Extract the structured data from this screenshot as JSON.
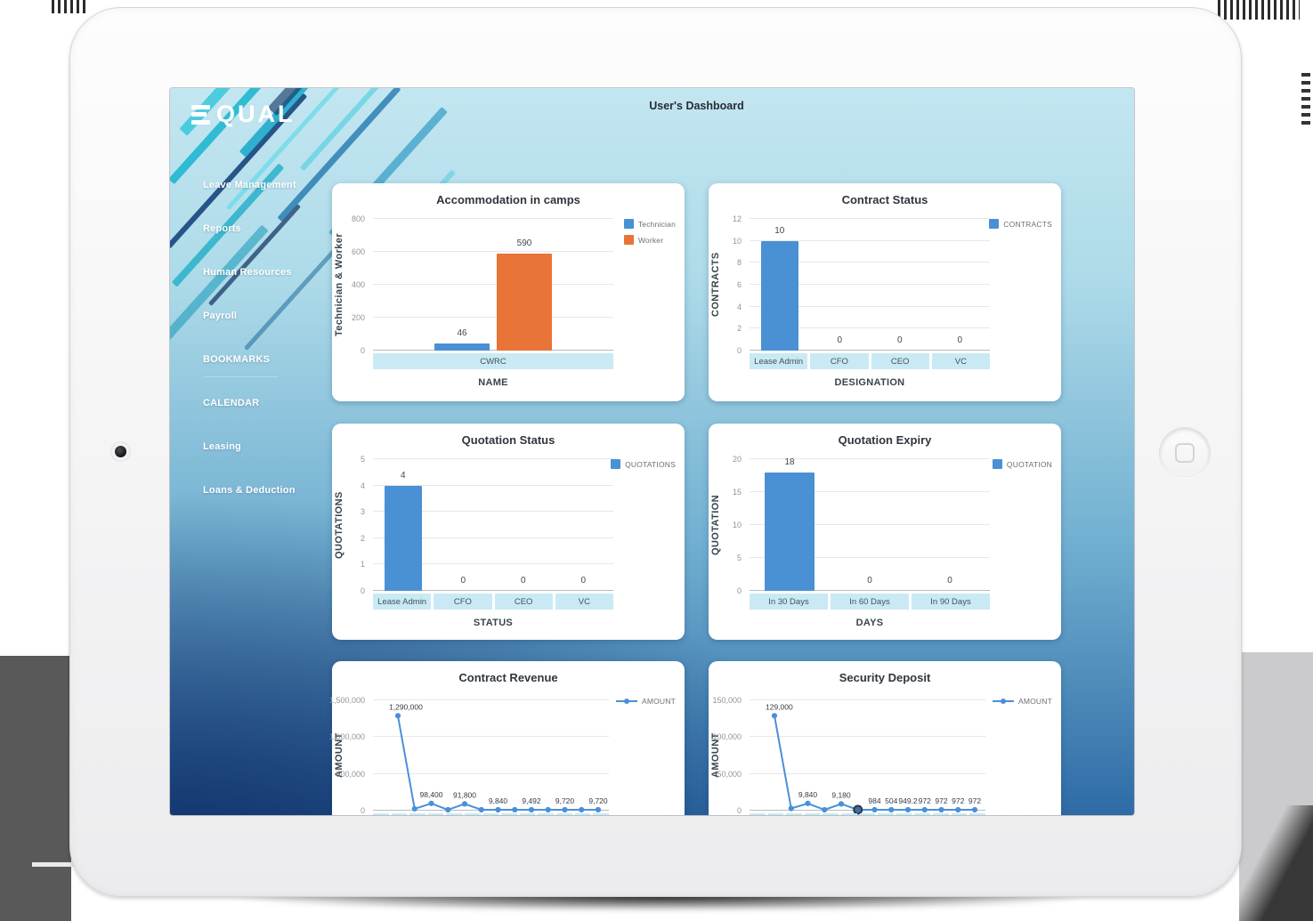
{
  "header": {
    "title": "User's Dashboard"
  },
  "logo": {
    "text": "EQUAL"
  },
  "icons": {
    "home_button": "rounded-square",
    "camera": "dot",
    "logo_e": "three-bars"
  },
  "sidebar": {
    "items": [
      {
        "label": "Leave Management"
      },
      {
        "label": "Reports"
      },
      {
        "label": "Human Resources"
      },
      {
        "label": "Payroll"
      },
      {
        "label": "BOOKMARKS",
        "divider_below": true
      },
      {
        "label": "CALENDAR"
      },
      {
        "label": "Leasing"
      },
      {
        "label": "Loans & Deduction"
      }
    ]
  },
  "colors": {
    "bar_blue": "#4a90d5",
    "bar_orange": "#e87438",
    "line_blue": "#4a90d9",
    "band_blue": "#c9eaf4",
    "screen_top": "#c3e6f1",
    "screen_bottom_left": "#112f68"
  },
  "chart_data": [
    {
      "id": "accommodation-in-camps",
      "type": "bar",
      "title": "Accommodation in camps",
      "xlabel": "NAME",
      "ylabel": "Technician & Worker",
      "categories": [
        "CWRC"
      ],
      "series": [
        {
          "name": "Technician",
          "color": "#4a90d5",
          "values": [
            46
          ]
        },
        {
          "name": "Worker",
          "color": "#e87438",
          "values": [
            590
          ]
        }
      ],
      "yticks": [
        "0",
        "200",
        "400",
        "600",
        "800"
      ],
      "ymax": 800,
      "legend_position": "right",
      "grid": true
    },
    {
      "id": "contract-status",
      "type": "bar",
      "title": "Contract Status",
      "xlabel": "DESIGNATION",
      "ylabel": "CONTRACTS",
      "categories": [
        "Lease Admin",
        "CFO",
        "CEO",
        "VC"
      ],
      "series": [
        {
          "name": "CONTRACTS",
          "color": "#4a90d5",
          "values": [
            10,
            0,
            0,
            0
          ]
        }
      ],
      "yticks": [
        "0",
        "2",
        "4",
        "6",
        "8",
        "10",
        "12"
      ],
      "ymax": 12,
      "legend_position": "right",
      "grid": true
    },
    {
      "id": "quotation-status",
      "type": "bar",
      "title": "Quotation Status",
      "xlabel": "STATUS",
      "ylabel": "QUOTATIONS",
      "categories": [
        "Lease Admin",
        "CFO",
        "CEO",
        "VC"
      ],
      "series": [
        {
          "name": "QUOTATIONS",
          "color": "#4a90d5",
          "values": [
            4,
            0,
            0,
            0
          ]
        }
      ],
      "yticks": [
        "0",
        "1",
        "2",
        "3",
        "4",
        "5"
      ],
      "ymax": 5,
      "legend_position": "right",
      "grid": true
    },
    {
      "id": "quotation-expiry",
      "type": "bar",
      "title": "Quotation Expiry",
      "xlabel": "DAYS",
      "ylabel": "QUOTATION",
      "categories": [
        "In 30 Days",
        "In 60 Days",
        "In 90 Days"
      ],
      "series": [
        {
          "name": "QUOTATION",
          "color": "#4a90d5",
          "values": [
            18,
            0,
            0
          ]
        }
      ],
      "yticks": [
        "0",
        "5",
        "10",
        "15",
        "20"
      ],
      "ymax": 20,
      "legend_position": "right",
      "grid": true
    },
    {
      "id": "contract-revenue",
      "type": "line",
      "title": "Contract Revenue",
      "ylabel": "AMOUNT",
      "legend": "AMOUNT",
      "color": "#4a90d9",
      "values": [
        1290000,
        25000,
        98400,
        10000,
        91800,
        8000,
        9840,
        2000,
        9492,
        2400,
        9720,
        2400,
        9720
      ],
      "labels": [
        "1,290,000",
        "",
        "98,400",
        "",
        "91,800",
        "",
        "9,840",
        "",
        "9,492",
        "",
        "9,720",
        "",
        "9,720"
      ],
      "yticks": [
        "0",
        "500,000",
        "1,000,000",
        "1,500,000"
      ],
      "ymax": 1500000,
      "legend_position": "right",
      "grid": true
    },
    {
      "id": "security-deposit",
      "type": "line",
      "title": "Security Deposit",
      "ylabel": "AMOUNT",
      "legend": "AMOUNT",
      "color": "#4a90d9",
      "values": [
        129000,
        3000,
        9840,
        1200,
        9180,
        600,
        984,
        504,
        949.2,
        972,
        972,
        972,
        972
      ],
      "labels": [
        "129,000",
        "",
        "9,840",
        "",
        "9,180",
        "",
        "984",
        "504",
        "949.2",
        "972",
        "972",
        "972",
        "972"
      ],
      "highlight_index": 5,
      "yticks": [
        "0",
        "50,000",
        "100,000",
        "150,000"
      ],
      "ymax": 150000,
      "legend_position": "right",
      "grid": true
    }
  ]
}
